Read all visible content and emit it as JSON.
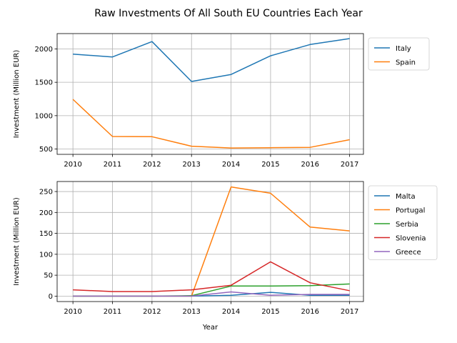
{
  "figure": {
    "suptitle": "Raw Investments Of All South EU Countries Each Year"
  },
  "chart_data": [
    {
      "type": "line",
      "title": "",
      "xlabel": "",
      "ylabel": "Investment (Million EUR)",
      "x": [
        2010,
        2011,
        2012,
        2013,
        2014,
        2015,
        2016,
        2017
      ],
      "xticks": [
        "2010",
        "2011",
        "2012",
        "2013",
        "2014",
        "2015",
        "2016",
        "2017"
      ],
      "xlim": [
        2009.6,
        2017.35
      ],
      "ylim": [
        420,
        2230
      ],
      "yticks": [
        500,
        1000,
        1500,
        2000
      ],
      "grid": true,
      "legend": "outside-upper-right",
      "series": [
        {
          "name": "Italy",
          "color": "#1f77b4",
          "values": [
            1922,
            1880,
            2110,
            1512,
            1617,
            1897,
            2066,
            2155
          ]
        },
        {
          "name": "Spain",
          "color": "#ff7f0e",
          "values": [
            1245,
            688,
            685,
            542,
            515,
            520,
            525,
            640
          ]
        }
      ]
    },
    {
      "type": "line",
      "title": "",
      "xlabel": "Year",
      "ylabel": "Investment (Million EUR)",
      "x": [
        2010,
        2011,
        2012,
        2013,
        2014,
        2015,
        2016,
        2017
      ],
      "xticks": [
        "2010",
        "2011",
        "2012",
        "2013",
        "2014",
        "2015",
        "2016",
        "2017"
      ],
      "xlim": [
        2009.6,
        2017.35
      ],
      "ylim": [
        -13,
        274
      ],
      "yticks": [
        0,
        50,
        100,
        150,
        200,
        250
      ],
      "grid": true,
      "legend": "outside-upper-right",
      "series": [
        {
          "name": "Malta",
          "color": "#1f77b4",
          "values": [
            0,
            0,
            0,
            0,
            2,
            9,
            2,
            2
          ]
        },
        {
          "name": "Portugal",
          "color": "#ff7f0e",
          "values": [
            0,
            0,
            0,
            0,
            261,
            246,
            165,
            156
          ]
        },
        {
          "name": "Serbia",
          "color": "#2ca02c",
          "values": [
            0,
            0,
            0,
            1,
            24,
            24,
            25,
            29
          ]
        },
        {
          "name": "Slovenia",
          "color": "#d62728",
          "values": [
            15,
            11,
            11,
            15,
            26,
            82,
            32,
            13
          ]
        },
        {
          "name": "Greece",
          "color": "#9467bd",
          "values": [
            0,
            0,
            0,
            0,
            10,
            2,
            4,
            4
          ]
        }
      ]
    }
  ]
}
